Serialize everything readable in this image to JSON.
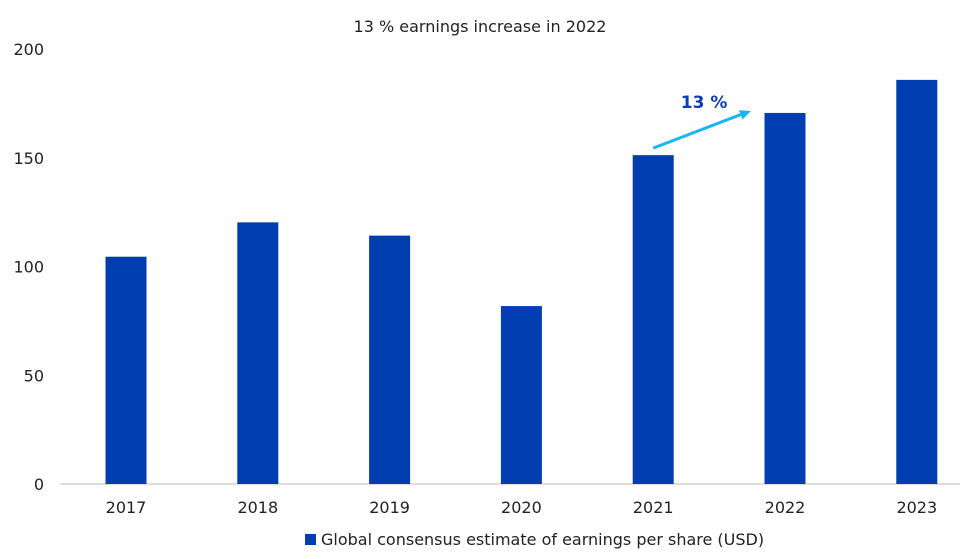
{
  "chart_data": {
    "type": "bar",
    "title": "13 % earnings increase in 2022",
    "categories": [
      "2017",
      "2018",
      "2019",
      "2020",
      "2021",
      "2022",
      "2023"
    ],
    "series": [
      {
        "name": "Global consensus estimate of earnings per share (USD)",
        "values": [
          104.5,
          120.3,
          114.2,
          81.8,
          151.2,
          170.6,
          185.8
        ]
      }
    ],
    "ylim": [
      0,
      200
    ],
    "yticks": [
      "0",
      "50",
      "100",
      "150",
      "200"
    ],
    "grid": false,
    "legend": "bottom",
    "annotation": {
      "text": "13 %",
      "from": "2021",
      "to": "2022"
    },
    "colors": {
      "bar": "#003db0",
      "arrow": "#1cb6ef",
      "annotation_text": "#0b3fae"
    }
  }
}
